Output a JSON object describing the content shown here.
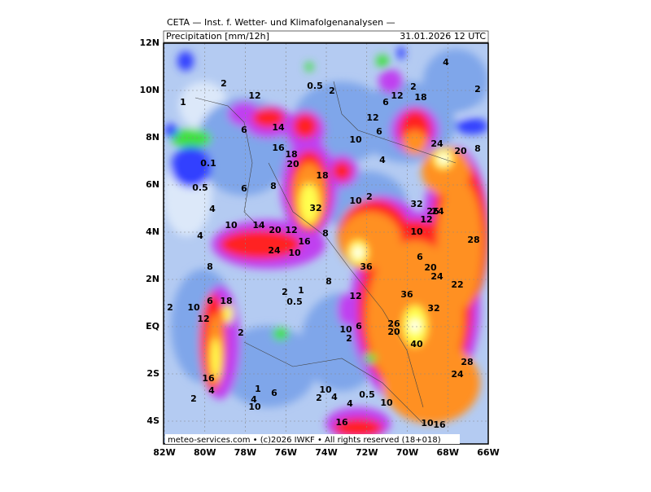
{
  "header": {
    "title": "CETA — Inst. f. Wetter- und Klimafolgenanalysen —",
    "product": "Precipitation [mm/12h]",
    "valid_time": "31.01.2026 12 UTC"
  },
  "axes": {
    "x_labels": [
      "82W",
      "80W",
      "78W",
      "76W",
      "74W",
      "72W",
      "70W",
      "68W",
      "66W"
    ],
    "y_labels": [
      "12N",
      "10N",
      "8N",
      "6N",
      "4N",
      "2N",
      "EQ",
      "2S",
      "4S"
    ]
  },
  "contour_labels": [
    "2",
    "1",
    "12",
    "0.5",
    "2",
    "6",
    "12",
    "18",
    "2",
    "4",
    "2",
    "14",
    "12",
    "6",
    "10",
    "6",
    "16",
    "18",
    "20",
    "0.1",
    "4",
    "24",
    "20",
    "8",
    "0.5",
    "6",
    "8",
    "18",
    "2",
    "32",
    "32",
    "26",
    "24",
    "12",
    "10",
    "4",
    "10",
    "14",
    "20",
    "12",
    "4",
    "8",
    "16",
    "10",
    "24",
    "10",
    "28",
    "8",
    "36",
    "6",
    "20",
    "24",
    "22",
    "2",
    "1",
    "8",
    "12",
    "36",
    "0.5",
    "2",
    "10",
    "12",
    "6",
    "18",
    "32",
    "2",
    "10",
    "6",
    "26",
    "20",
    "2",
    "40",
    "28",
    "24",
    "16",
    "4",
    "1",
    "6",
    "10",
    "4",
    "2",
    "4",
    "0.5",
    "10",
    "4",
    "10",
    "2",
    "10",
    "16",
    "16"
  ],
  "footer": "meteo-services.com • (c)2026 IWKF • All rights reserved (18+018)"
}
